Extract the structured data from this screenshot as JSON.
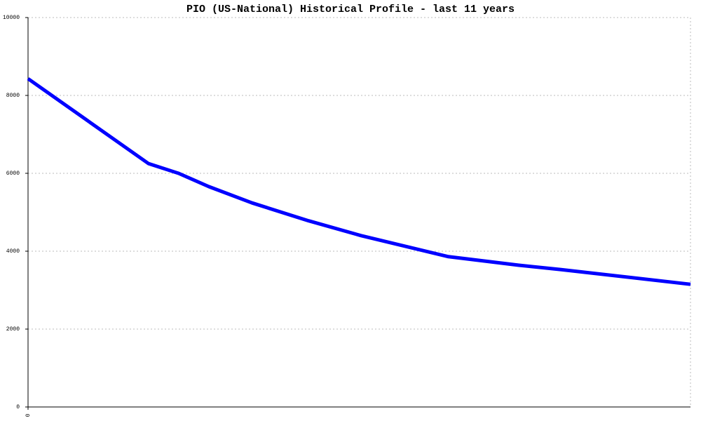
{
  "chart_data": {
    "type": "line",
    "title": "PIO (US-National) Historical Profile - last 11 years",
    "x": [
      0,
      2.0,
      2.5,
      3.0,
      3.72,
      4.66,
      5.53,
      6.98,
      8.15,
      8.84,
      11
    ],
    "series": [
      {
        "name": "PIO",
        "color": "#0000ff",
        "values": [
          8430,
          6250,
          6000,
          5660,
          5240,
          4780,
          4400,
          3860,
          3640,
          3530,
          3150
        ]
      }
    ],
    "xlim": [
      0,
      11
    ],
    "xticks": [
      0
    ],
    "ylim": [
      0,
      10000
    ],
    "yticks": [
      0,
      2000,
      4000,
      6000,
      8000,
      10000
    ],
    "grid": true
  }
}
